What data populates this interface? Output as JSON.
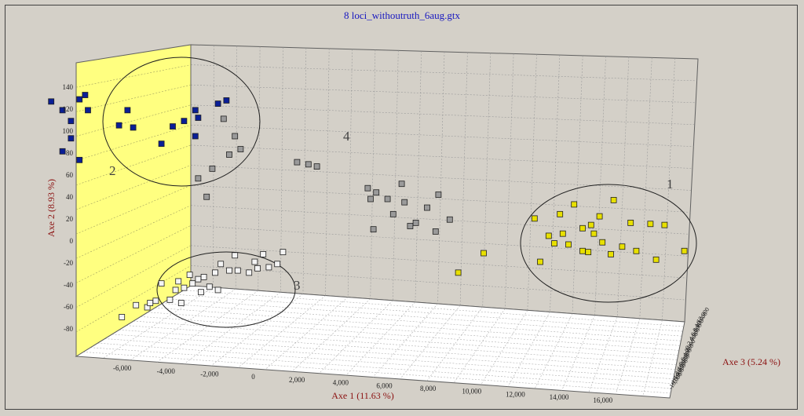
{
  "window": {
    "title": "8 loci_withoutruth_6aug.gtx"
  },
  "chart_data": {
    "type": "scatter",
    "title": "8 loci_withoutruth_6aug.gtx",
    "xlabel": "Axe 1 (11.63 %)",
    "ylabel": "Axe 2 (8.93 %)",
    "zlabel": "Axe 3 (5.24 %)",
    "x_ticks": [
      "-6,000",
      "-4,000",
      "-2,000",
      "0",
      "2,000",
      "4,000",
      "6,000",
      "8,000",
      "10,000",
      "12,000",
      "14,000",
      "16,000"
    ],
    "y_ticks": [
      "140",
      "120",
      "100",
      "80",
      "60",
      "40",
      "20",
      "0",
      "-20",
      "-40",
      "-60",
      "-80"
    ],
    "z_ticks": [
      "12,000",
      "10,000",
      "8,000",
      "6,000",
      "4,000",
      "2,000",
      "0",
      "-2,000",
      "-4,000",
      "-6,000",
      "-8,000",
      "-10,000",
      "-12,000",
      "-14,000",
      "-16,000",
      "-18,000"
    ],
    "ylim": [
      -90,
      150
    ],
    "grid": true,
    "background_wall_color": "#ffff80",
    "groups": [
      {
        "label": "1",
        "color": "#e8e000",
        "points": [
          [
            11.7,
            41
          ],
          [
            13.1,
            45
          ],
          [
            10.3,
            28
          ],
          [
            11.2,
            32
          ],
          [
            12.6,
            30
          ],
          [
            12.3,
            22
          ],
          [
            13.7,
            24
          ],
          [
            14.4,
            23
          ],
          [
            14.9,
            22
          ],
          [
            12.0,
            19
          ],
          [
            11.3,
            14
          ],
          [
            10.8,
            12
          ],
          [
            12.4,
            14
          ],
          [
            11.0,
            5
          ],
          [
            11.5,
            4
          ],
          [
            12.7,
            6
          ],
          [
            13.4,
            2
          ],
          [
            13.9,
            -2
          ],
          [
            8.5,
            -4
          ],
          [
            10.5,
            -12
          ],
          [
            12.0,
            -2
          ],
          [
            14.6,
            -10
          ],
          [
            15.6,
            -2
          ],
          [
            7.6,
            -22
          ],
          [
            13.0,
            -5
          ],
          [
            12.2,
            -3
          ]
        ]
      },
      {
        "label": "2",
        "color": "#0a1e96",
        "points": [
          [
            -5.8,
            138
          ],
          [
            -5.6,
            142
          ],
          [
            -6.8,
            136
          ],
          [
            -6.4,
            128
          ],
          [
            -5.5,
            128
          ],
          [
            -4.1,
            128
          ],
          [
            -4.4,
            114
          ],
          [
            -2.5,
            113
          ],
          [
            -1.6,
            121
          ],
          [
            -0.9,
            134
          ],
          [
            -0.6,
            137
          ],
          [
            -1.7,
            128
          ],
          [
            -3.9,
            112
          ],
          [
            -6.1,
            118
          ],
          [
            -6.1,
            102
          ],
          [
            -6.4,
            90
          ],
          [
            -5.8,
            82
          ],
          [
            -2.1,
            118
          ],
          [
            -1.7,
            104
          ],
          [
            -2.9,
            97
          ]
        ]
      },
      {
        "label": "3",
        "color": "#f4f4f4",
        "points": [
          [
            -4.3,
            -63
          ],
          [
            -3.4,
            -54
          ],
          [
            -3.3,
            -50
          ],
          [
            -3.1,
            -48
          ],
          [
            -2.6,
            -47
          ],
          [
            -2.2,
            -50
          ],
          [
            -1.5,
            -40
          ],
          [
            -0.9,
            -38
          ],
          [
            -2.9,
            -32
          ],
          [
            -2.3,
            -30
          ],
          [
            -1.9,
            -24
          ],
          [
            -1.4,
            -26
          ],
          [
            -1.0,
            -22
          ],
          [
            -0.5,
            -20
          ],
          [
            -0.2,
            -20
          ],
          [
            0.2,
            -22
          ],
          [
            0.5,
            -18
          ],
          [
            0.9,
            -17
          ],
          [
            1.2,
            -14
          ],
          [
            -0.8,
            -14
          ],
          [
            -0.3,
            -6
          ],
          [
            0.7,
            -5
          ],
          [
            1.4,
            -3
          ],
          [
            0.4,
            -12
          ],
          [
            -2.1,
            -36
          ],
          [
            -1.8,
            -32
          ],
          [
            -1.2,
            -35
          ],
          [
            -2.4,
            -38
          ],
          [
            -3.8,
            -52
          ],
          [
            -1.6,
            -28
          ]
        ]
      },
      {
        "label": "4",
        "color": "#9a9a9a",
        "points": [
          [
            -0.7,
            120
          ],
          [
            -0.3,
            104
          ],
          [
            -0.1,
            92
          ],
          [
            -0.5,
            87
          ],
          [
            -1.1,
            74
          ],
          [
            -1.6,
            65
          ],
          [
            -1.3,
            48
          ],
          [
            1.9,
            80
          ],
          [
            2.3,
            78
          ],
          [
            2.6,
            76
          ],
          [
            4.4,
            56
          ],
          [
            4.7,
            52
          ],
          [
            5.1,
            46
          ],
          [
            5.6,
            60
          ],
          [
            5.7,
            43
          ],
          [
            6.5,
            38
          ],
          [
            6.9,
            50
          ],
          [
            4.5,
            46
          ],
          [
            5.3,
            32
          ],
          [
            4.6,
            18
          ],
          [
            6.1,
            24
          ],
          [
            6.8,
            16
          ],
          [
            7.3,
            27
          ],
          [
            5.9,
            21
          ]
        ]
      }
    ]
  }
}
